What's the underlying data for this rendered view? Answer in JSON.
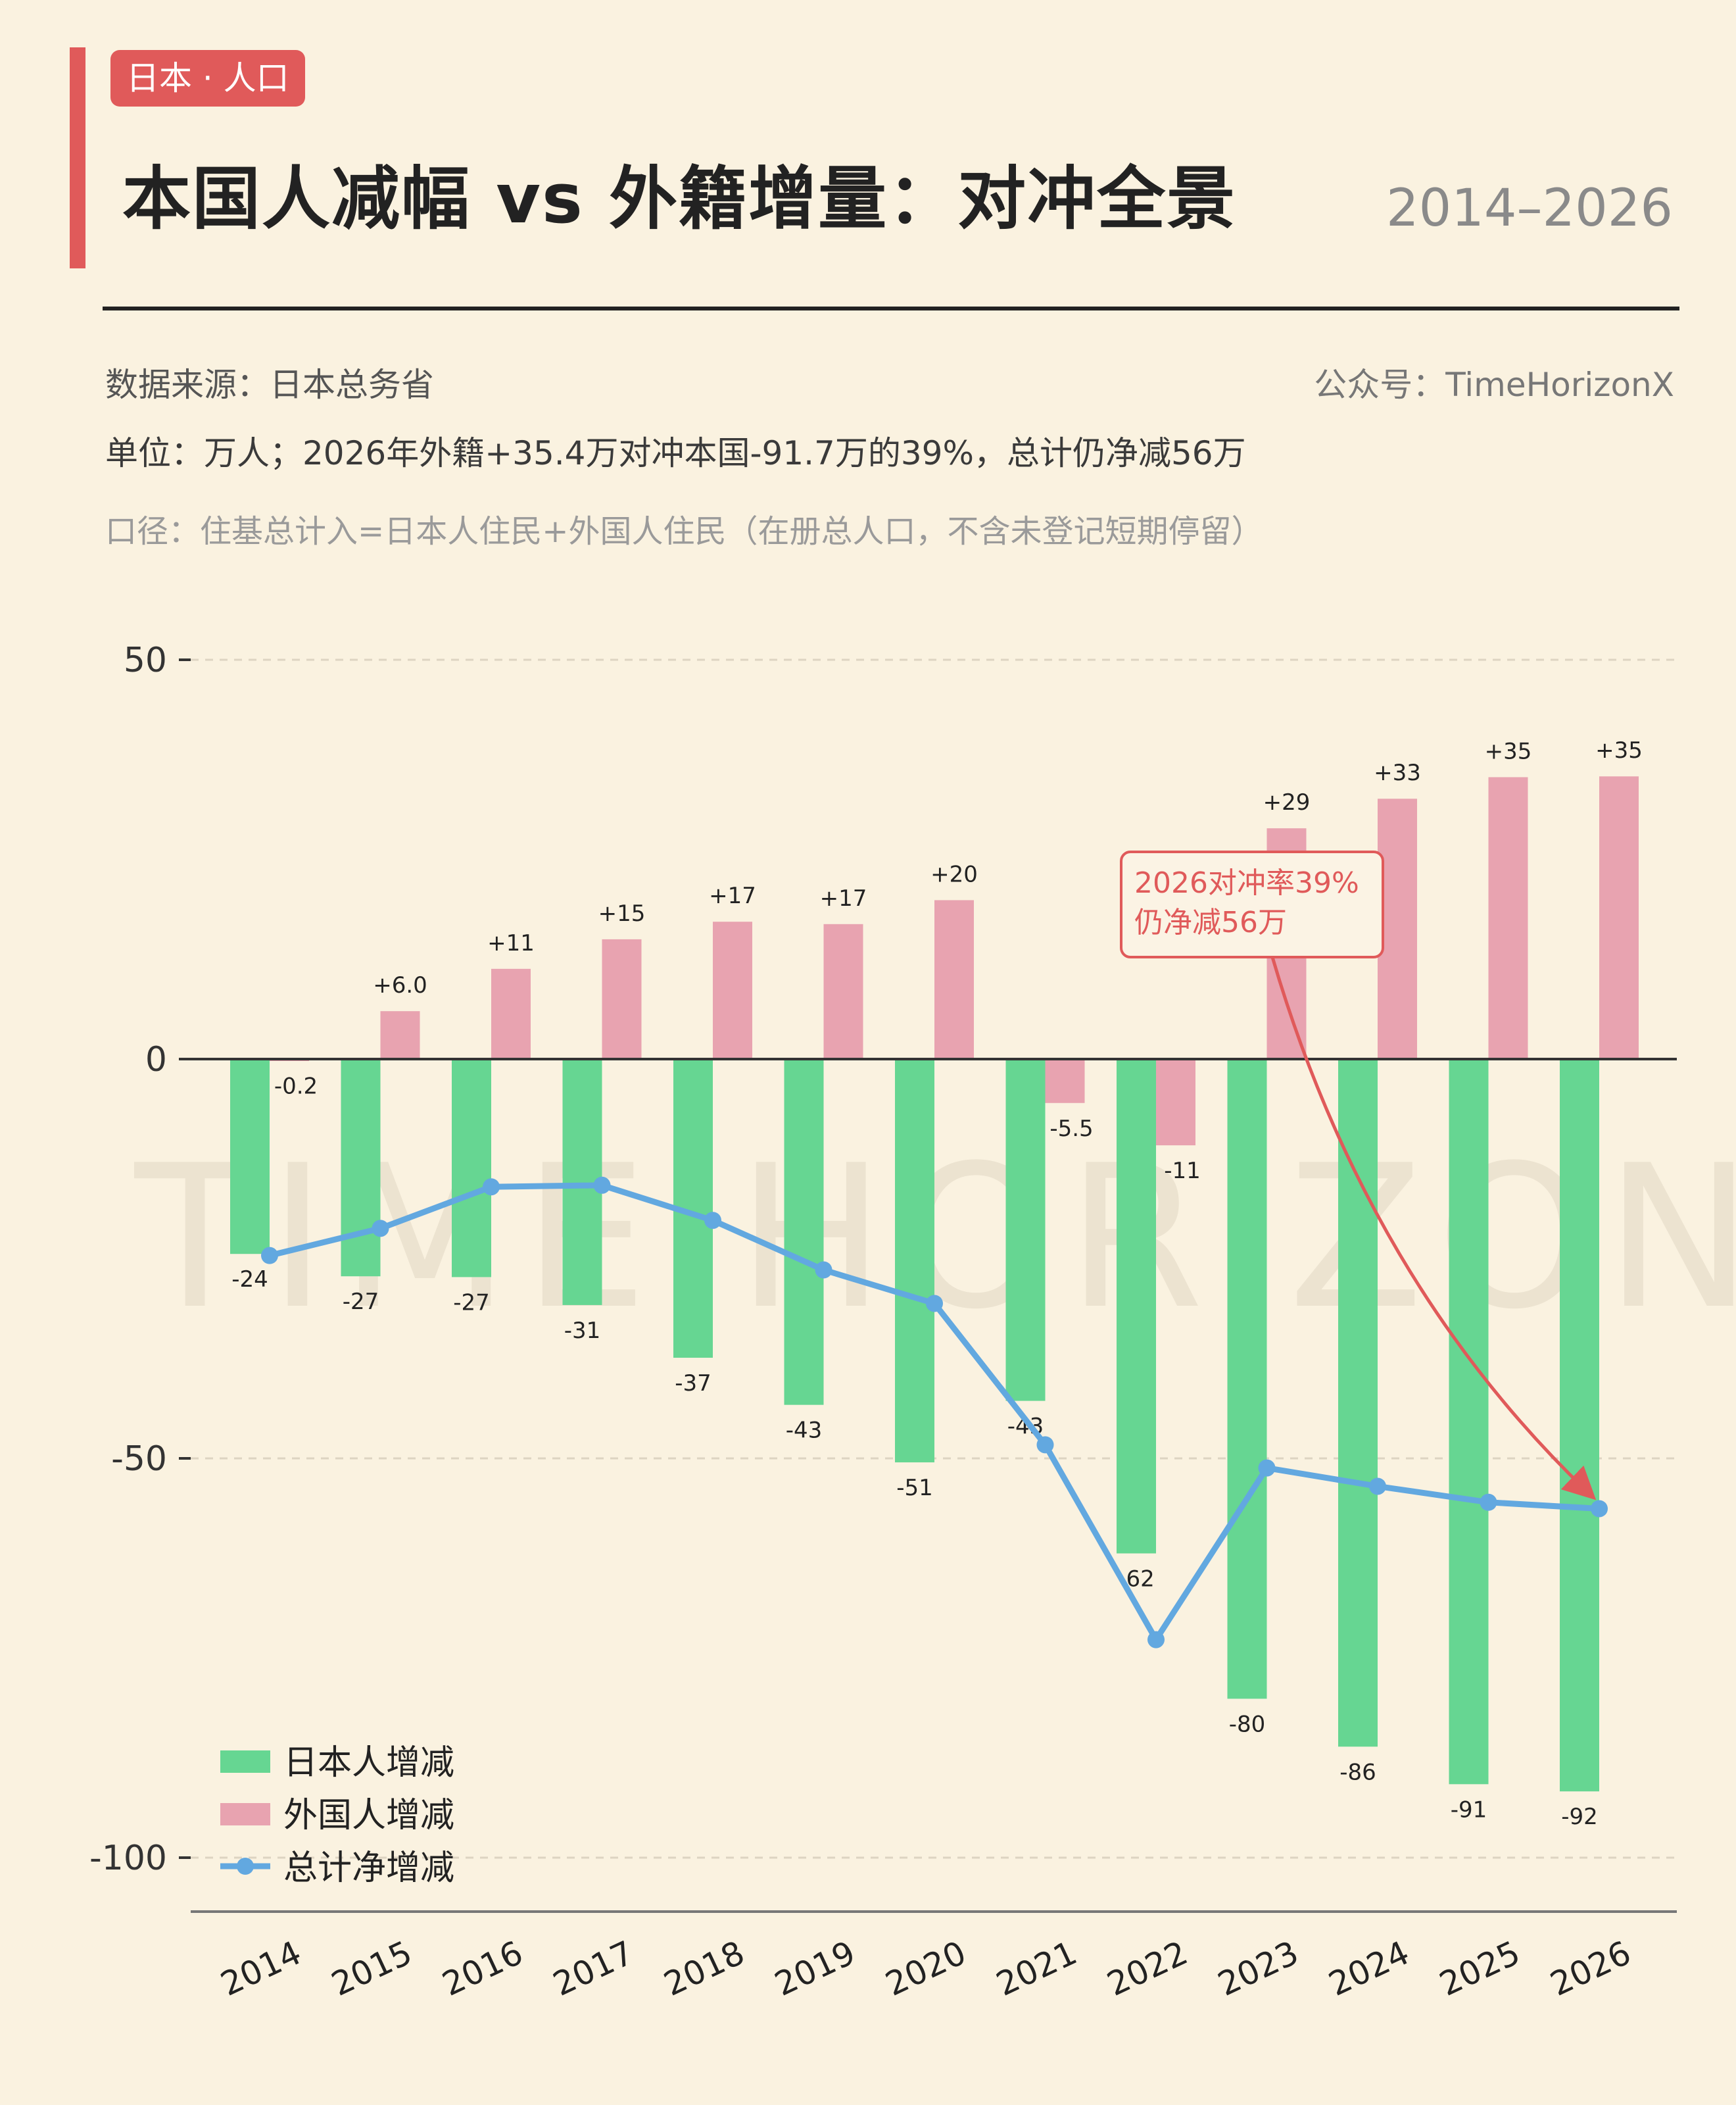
{
  "header": {
    "tag": "日本 · 人口",
    "title": "本国人减幅 vs 外籍增量：对冲全景",
    "year_range": "2014–2026"
  },
  "meta": {
    "source": "数据来源：日本总务省",
    "account": "公众号：TimeHorizonX",
    "unit_note": "单位：万人；2026年外籍+35.4万对冲本国-91.7万的39%，总计仍净减56万",
    "scope_note": "口径：住基总计入=日本人住民+外国人住民（在册总人口，不含未登记短期停留）"
  },
  "watermark": "TIME HORIZON",
  "chart_data": {
    "type": "bar",
    "categories": [
      "2014",
      "2015",
      "2016",
      "2017",
      "2018",
      "2019",
      "2020",
      "2021",
      "2022",
      "2023",
      "2024",
      "2025",
      "2026"
    ],
    "series": [
      {
        "name": "日本人增减",
        "kind": "bar",
        "color": "#66d692",
        "values": [
          -24.4,
          -27.2,
          -27.3,
          -30.8,
          -37.4,
          -43.3,
          -50.5,
          -42.8,
          -61.9,
          -80.1,
          -86.1,
          -90.8,
          -91.7
        ],
        "labels": [
          "-24",
          "-27",
          "-27",
          "-31",
          "-37",
          "-43",
          "-51",
          "-43",
          "-62",
          "-80",
          "-86",
          "-91",
          "-92"
        ]
      },
      {
        "name": "外国人增减",
        "kind": "bar",
        "color": "#e8a3b0",
        "values": [
          -0.2,
          6.0,
          11.3,
          15.0,
          17.2,
          16.9,
          19.9,
          -5.5,
          -10.8,
          28.9,
          32.6,
          35.3,
          35.4
        ],
        "labels": [
          "-0.2",
          "+6.0",
          "+11",
          "+15",
          "+17",
          "+17",
          "+20",
          "-5.5",
          "-11",
          "+29",
          "+33",
          "+35",
          "+35"
        ]
      },
      {
        "name": "总计净增减",
        "kind": "line",
        "color": "#62a8e0",
        "values": [
          -24.6,
          -21.2,
          -16.0,
          -15.8,
          -20.2,
          -26.4,
          -30.6,
          -48.3,
          -72.7,
          -51.2,
          -53.5,
          -55.5,
          -56.3
        ]
      }
    ],
    "ylim": [
      -105,
      50
    ],
    "yticks": [
      50,
      0,
      -50,
      -100
    ],
    "grid": true,
    "legend_position": "bottom-left",
    "annotation": {
      "lines": [
        "2026对冲率39%",
        "仍净减56万"
      ],
      "color": "#e05a5a",
      "target_category": "2026"
    }
  }
}
